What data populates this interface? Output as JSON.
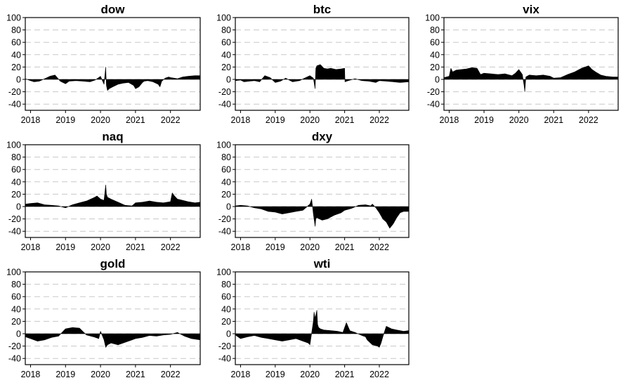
{
  "chart_data": [
    {
      "type": "area",
      "title": "dow",
      "xlim": [
        2017.85,
        2022.85
      ],
      "ylim": [
        -50,
        100
      ],
      "y_ticks": [
        "100",
        "80",
        "60",
        "40",
        "20",
        "0",
        "-20",
        "-40"
      ],
      "x_ticks": [
        "2018",
        "2019",
        "2020",
        "2021",
        "2022"
      ],
      "x": [
        2017.85,
        2018.0,
        2018.1,
        2018.25,
        2018.4,
        2018.55,
        2018.7,
        2018.85,
        2019.0,
        2019.1,
        2019.3,
        2019.5,
        2019.7,
        2019.85,
        2020.0,
        2020.1,
        2020.15,
        2020.17,
        2020.2,
        2020.25,
        2020.35,
        2020.5,
        2020.65,
        2020.8,
        2020.95,
        2021.0,
        2021.1,
        2021.2,
        2021.25,
        2021.35,
        2021.5,
        2021.65,
        2021.7,
        2021.75,
        2021.85,
        2021.95,
        2022.0,
        2022.1,
        2022.2,
        2022.35,
        2022.5,
        2022.7,
        2022.85
      ],
      "y": [
        1,
        -2,
        -4,
        -3,
        1,
        5,
        7,
        -3,
        -7,
        -3,
        -2,
        -3,
        -4,
        -1,
        5,
        -8,
        20,
        -10,
        -18,
        -15,
        -12,
        -8,
        -6,
        -5,
        -10,
        -15,
        -12,
        -5,
        -3,
        -2,
        -4,
        -8,
        -12,
        -3,
        2,
        4,
        3,
        2,
        1,
        4,
        5,
        6,
        6
      ]
    },
    {
      "type": "area",
      "title": "btc",
      "xlim": [
        2017.85,
        2022.85
      ],
      "ylim": [
        -50,
        100
      ],
      "y_ticks": [
        "100",
        "80",
        "60",
        "40",
        "20",
        "0",
        "-20",
        "-40"
      ],
      "x_ticks": [
        "2018",
        "2019",
        "2020",
        "2021",
        "2022"
      ],
      "x": [
        2017.85,
        2018.0,
        2018.1,
        2018.25,
        2018.4,
        2018.55,
        2018.7,
        2018.85,
        2019.0,
        2019.15,
        2019.3,
        2019.5,
        2019.7,
        2019.85,
        2020.0,
        2020.1,
        2020.15,
        2020.17,
        2020.2,
        2020.3,
        2020.4,
        2020.5,
        2020.6,
        2020.75,
        2020.9,
        2021.0,
        2021.01,
        2021.1,
        2021.3,
        2021.5,
        2021.7,
        2021.9,
        2022.0,
        2022.2,
        2022.4,
        2022.6,
        2022.85
      ],
      "y": [
        -2,
        -1,
        -4,
        -3,
        -2,
        -4,
        6,
        3,
        -5,
        -3,
        2,
        -4,
        -2,
        2,
        6,
        2,
        -15,
        18,
        22,
        24,
        18,
        17,
        18,
        16,
        17,
        18,
        -4,
        -2,
        1,
        -2,
        -3,
        -5,
        -2,
        -3,
        -4,
        -5,
        -4
      ]
    },
    {
      "type": "area",
      "title": "vix",
      "xlim": [
        2017.85,
        2022.85
      ],
      "ylim": [
        -50,
        100
      ],
      "y_ticks": [
        "100",
        "80",
        "60",
        "40",
        "20",
        "0",
        "-20",
        "-40"
      ],
      "x_ticks": [
        "2018",
        "2019",
        "2020",
        "2021",
        "2022"
      ],
      "x": [
        2017.85,
        2018.0,
        2018.05,
        2018.1,
        2018.2,
        2018.35,
        2018.5,
        2018.65,
        2018.8,
        2018.9,
        2019.0,
        2019.2,
        2019.4,
        2019.6,
        2019.8,
        2019.9,
        2020.0,
        2020.1,
        2020.15,
        2020.17,
        2020.2,
        2020.3,
        2020.5,
        2020.7,
        2020.9,
        2021.0,
        2021.2,
        2021.4,
        2021.6,
        2021.8,
        2022.0,
        2022.1,
        2022.2,
        2022.35,
        2022.5,
        2022.7,
        2022.85
      ],
      "y": [
        3,
        5,
        18,
        12,
        15,
        16,
        17,
        19,
        18,
        8,
        10,
        9,
        8,
        9,
        6,
        10,
        16,
        8,
        -10,
        -20,
        4,
        7,
        6,
        7,
        5,
        2,
        3,
        8,
        12,
        18,
        22,
        16,
        12,
        7,
        5,
        4,
        4
      ]
    },
    {
      "type": "area",
      "title": "naq",
      "xlim": [
        2017.85,
        2022.85
      ],
      "ylim": [
        -50,
        100
      ],
      "y_ticks": [
        "100",
        "80",
        "60",
        "40",
        "20",
        "0",
        "-20",
        "-40"
      ],
      "x_ticks": [
        "2018",
        "2019",
        "2020",
        "2021",
        "2022"
      ],
      "x": [
        2017.85,
        2018.0,
        2018.2,
        2018.4,
        2018.6,
        2018.8,
        2019.0,
        2019.2,
        2019.4,
        2019.6,
        2019.8,
        2019.9,
        2020.0,
        2020.1,
        2020.15,
        2020.17,
        2020.2,
        2020.3,
        2020.5,
        2020.7,
        2020.9,
        2021.0,
        2021.2,
        2021.4,
        2021.6,
        2021.8,
        2022.0,
        2022.05,
        2022.1,
        2022.2,
        2022.35,
        2022.5,
        2022.7,
        2022.85
      ],
      "y": [
        4,
        5,
        6,
        3,
        2,
        1,
        -2,
        3,
        6,
        9,
        14,
        17,
        12,
        10,
        35,
        20,
        15,
        12,
        7,
        2,
        1,
        6,
        7,
        9,
        7,
        6,
        8,
        22,
        18,
        12,
        10,
        8,
        6,
        7
      ]
    },
    {
      "type": "area",
      "title": "dxy",
      "xlim": [
        2017.85,
        2022.85
      ],
      "ylim": [
        -50,
        100
      ],
      "y_ticks": [
        "100",
        "80",
        "60",
        "40",
        "20",
        "0",
        "-20",
        "-40"
      ],
      "x_ticks": [
        "2018",
        "2019",
        "2020",
        "2021",
        "2022"
      ],
      "x": [
        2017.85,
        2018.0,
        2018.2,
        2018.4,
        2018.6,
        2018.8,
        2019.0,
        2019.2,
        2019.4,
        2019.6,
        2019.8,
        2020.0,
        2020.05,
        2020.1,
        2020.15,
        2020.17,
        2020.2,
        2020.35,
        2020.5,
        2020.7,
        2020.9,
        2021.0,
        2021.2,
        2021.4,
        2021.6,
        2021.75,
        2021.8,
        2021.9,
        2022.0,
        2022.1,
        2022.2,
        2022.3,
        2022.4,
        2022.5,
        2022.6,
        2022.7,
        2022.85
      ],
      "y": [
        1,
        2,
        1,
        -2,
        -4,
        -8,
        -9,
        -12,
        -10,
        -8,
        -6,
        4,
        12,
        -12,
        -32,
        -20,
        -18,
        -22,
        -20,
        -14,
        -10,
        -6,
        -3,
        2,
        3,
        1,
        4,
        -2,
        -10,
        -20,
        -25,
        -35,
        -28,
        -18,
        -10,
        -8,
        -8
      ]
    },
    {
      "type": "area",
      "title": "gold",
      "xlim": [
        2017.85,
        2022.85
      ],
      "ylim": [
        -50,
        100
      ],
      "y_ticks": [
        "100",
        "80",
        "60",
        "40",
        "20",
        "0",
        "-20",
        "-40"
      ],
      "x_ticks": [
        "2018",
        "2019",
        "2020",
        "2021",
        "2022"
      ],
      "x": [
        2017.85,
        2018.0,
        2018.2,
        2018.4,
        2018.6,
        2018.8,
        2018.9,
        2019.0,
        2019.2,
        2019.4,
        2019.6,
        2019.8,
        2019.95,
        2020.0,
        2020.1,
        2020.15,
        2020.2,
        2020.3,
        2020.5,
        2020.7,
        2020.9,
        2021.0,
        2021.2,
        2021.4,
        2021.6,
        2021.8,
        2022.0,
        2022.2,
        2022.4,
        2022.6,
        2022.85
      ],
      "y": [
        -5,
        -8,
        -12,
        -10,
        -6,
        -4,
        2,
        8,
        10,
        9,
        -2,
        -5,
        -8,
        4,
        -10,
        -22,
        -18,
        -15,
        -18,
        -14,
        -10,
        -8,
        -6,
        -3,
        -4,
        -2,
        -1,
        2,
        -4,
        -8,
        -10
      ]
    },
    {
      "type": "area",
      "title": "wti",
      "xlim": [
        2017.85,
        2022.85
      ],
      "ylim": [
        -50,
        100
      ],
      "y_ticks": [
        "100",
        "80",
        "60",
        "40",
        "20",
        "0",
        "-20",
        "-40"
      ],
      "x_ticks": [
        "2018",
        "2019",
        "2020",
        "2021",
        "2022"
      ],
      "x": [
        2017.85,
        2018.0,
        2018.2,
        2018.4,
        2018.6,
        2018.8,
        2019.0,
        2019.2,
        2019.4,
        2019.6,
        2019.8,
        2019.95,
        2020.0,
        2020.1,
        2020.12,
        2020.15,
        2020.2,
        2020.22,
        2020.25,
        2020.3,
        2020.4,
        2020.6,
        2020.8,
        2020.95,
        2021.0,
        2021.05,
        2021.15,
        2021.3,
        2021.5,
        2021.6,
        2021.65,
        2021.8,
        2021.95,
        2022.0,
        2022.05,
        2022.1,
        2022.2,
        2022.35,
        2022.5,
        2022.7,
        2022.85
      ],
      "y": [
        -2,
        -8,
        -5,
        -3,
        -6,
        -8,
        -10,
        -12,
        -10,
        -8,
        -12,
        -15,
        -18,
        20,
        35,
        25,
        38,
        15,
        10,
        8,
        6,
        5,
        4,
        2,
        10,
        18,
        5,
        2,
        -3,
        -5,
        -10,
        -18,
        -20,
        -22,
        -15,
        -5,
        12,
        8,
        6,
        4,
        5
      ]
    }
  ]
}
